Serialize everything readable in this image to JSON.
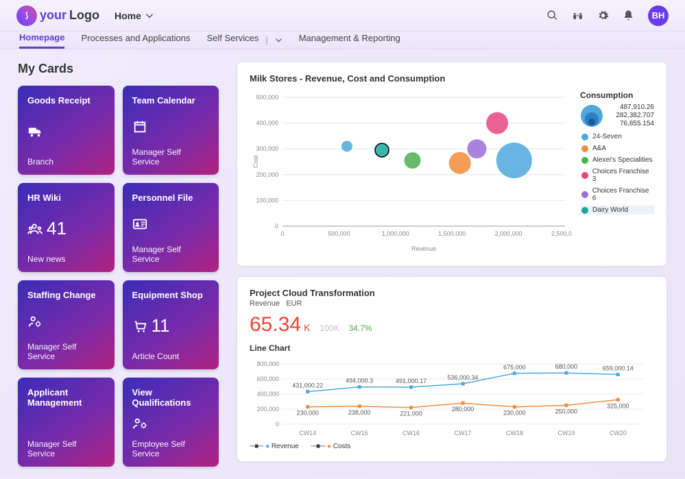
{
  "header": {
    "logo": {
      "your": "your",
      "logo": "Logo"
    },
    "home": "Home",
    "avatar": "BH"
  },
  "nav": {
    "tabs": [
      "Homepage",
      "Processes and Applications",
      "Self Services",
      "Management & Reporting"
    ],
    "active": 0
  },
  "page_title": "My Cards",
  "cards": [
    {
      "title": "Goods Receipt",
      "sub": "Branch",
      "icon": "truck",
      "num": ""
    },
    {
      "title": "Team Calendar",
      "sub": "Manager Self Service",
      "icon": "calendar",
      "num": ""
    },
    {
      "title": "HR Wiki",
      "sub": "New news",
      "icon": "people",
      "num": "41"
    },
    {
      "title": "Personnel File",
      "sub": "Manager Self Service",
      "icon": "idcard",
      "num": ""
    },
    {
      "title": "Staffing Change",
      "sub": "Manager Self Service",
      "icon": "usercog",
      "num": ""
    },
    {
      "title": "Equipment Shop",
      "sub": "Article Count",
      "icon": "cart",
      "num": "11"
    },
    {
      "title": "Applicant Management",
      "sub": "Manager Self Service",
      "icon": "",
      "num": ""
    },
    {
      "title": "View Qualifications",
      "sub": "Employee Self Service",
      "icon": "peoplecog",
      "num": ""
    }
  ],
  "bubble_chart": {
    "title": "Milk Stores - Revenue, Cost and Consumption",
    "xlabel": "Revenue",
    "ylabel": "Cost",
    "xlim": [
      0,
      2500000
    ],
    "ylim": [
      0,
      500000
    ],
    "xtick_step": 500000,
    "ytick_step": 100000,
    "background_color": "#ffffff",
    "grid_color": "#e8e8e8",
    "series": [
      {
        "name": "24-Seven",
        "color": "#4ea8de",
        "x": 2050000,
        "y": 255000,
        "r": 26
      },
      {
        "name": "A&A",
        "color": "#f28c3b",
        "x": 1570000,
        "y": 245000,
        "r": 16
      },
      {
        "name": "Alexei's Specialities",
        "color": "#4caf50",
        "x": 1150000,
        "y": 255000,
        "r": 12
      },
      {
        "name": "Choices Franchise 3",
        "color": "#e8467f",
        "x": 1900000,
        "y": 400000,
        "r": 16
      },
      {
        "name": "Choices Franchise 6",
        "color": "#9b6dd7",
        "x": 1720000,
        "y": 300000,
        "r": 14
      },
      {
        "name": "Dairy World",
        "color": "#1aa89c",
        "x": 880000,
        "y": 295000,
        "r": 10
      },
      {
        "name": "",
        "color": "#4ea8de",
        "x": 570000,
        "y": 310000,
        "r": 8
      }
    ],
    "consumption": {
      "title": "Consumption",
      "values": [
        "487,910.26",
        "282,382.707",
        "76,855.154"
      ],
      "colors": [
        "#4ea8de",
        "#2b7fc4",
        "#1b5a96"
      ]
    }
  },
  "project_panel": {
    "title": "Project Cloud Transformation",
    "subtitle_left": "Revenue",
    "subtitle_right": "EUR",
    "kpi": "65.34",
    "kpi_unit": "K",
    "kpi_sec": "100K",
    "kpi_pct": "34.7%",
    "line_title": "Line Chart",
    "xlim": [
      "CW14",
      "CW20"
    ],
    "categories": [
      "CW14",
      "CW15",
      "CW16",
      "CW17",
      "CW18",
      "CW19",
      "CW20"
    ],
    "ylim": [
      0,
      800000
    ],
    "ytick_step": 200000,
    "series": [
      {
        "name": "Revenue",
        "color": "#4ea8de",
        "values": [
          431000.22,
          494000.3,
          491000.17,
          536000.34,
          675000,
          680000,
          659000.14
        ]
      },
      {
        "name": "Costs",
        "color": "#f28c3b",
        "values": [
          230000,
          238000,
          221000,
          280000,
          230000,
          250000,
          325000
        ]
      }
    ],
    "rev_labels": [
      "431,000.22",
      "494,000.3",
      "491,000.17",
      "536,000.34",
      "675,000",
      "680,000",
      "659,000.14"
    ],
    "cost_labels": [
      "230,000",
      "238,000",
      "221,000",
      "280,000",
      "230,000",
      "250,000",
      "325,000"
    ]
  }
}
